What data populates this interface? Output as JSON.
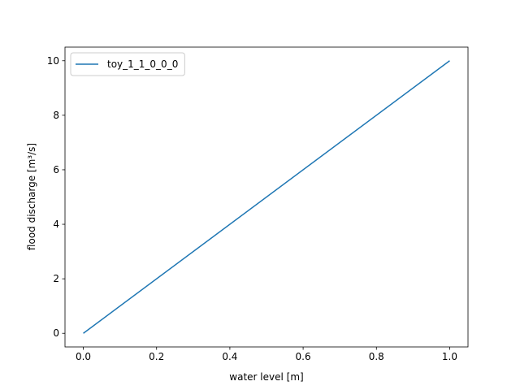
{
  "chart_data": {
    "type": "line",
    "x": [
      0,
      1
    ],
    "series": [
      {
        "name": "toy_1_1_0_0_0",
        "color": "#1f77b4",
        "values": [
          0,
          10
        ]
      }
    ],
    "xlabel": "water level [m]",
    "ylabel": "flood discharge [m³/s]",
    "xlim": [
      -0.05,
      1.05
    ],
    "ylim": [
      -0.5,
      10.5
    ],
    "xticks": [
      {
        "value": 0,
        "label": "0.0"
      },
      {
        "value": 0.2,
        "label": "0.2"
      },
      {
        "value": 0.4,
        "label": "0.4"
      },
      {
        "value": 0.6,
        "label": "0.6"
      },
      {
        "value": 0.8,
        "label": "0.8"
      },
      {
        "value": 1,
        "label": "1.0"
      }
    ],
    "yticks": [
      0,
      2,
      4,
      6,
      8,
      10
    ],
    "legend": "upper left",
    "grid": false
  }
}
